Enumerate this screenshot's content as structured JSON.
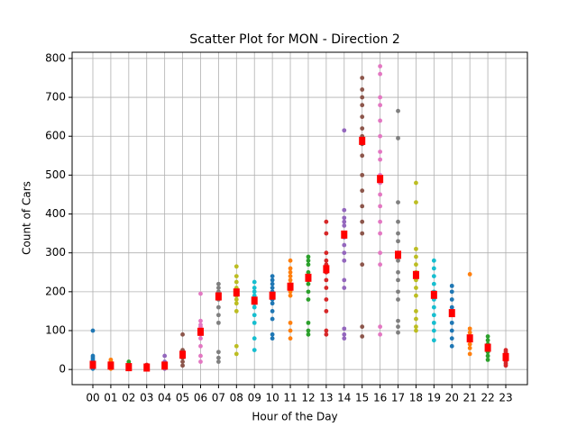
{
  "chart_data": {
    "type": "scatter",
    "title": "Scatter Plot for MON - Direction 2",
    "x_label": "Hour of the Day",
    "y_label": "Count of Cars",
    "categories": [
      "00",
      "01",
      "02",
      "03",
      "04",
      "05",
      "06",
      "07",
      "08",
      "09",
      "10",
      "11",
      "12",
      "13",
      "14",
      "15",
      "16",
      "17",
      "18",
      "19",
      "20",
      "21",
      "22",
      "23"
    ],
    "ylim": [
      -39,
      816
    ],
    "yticks": [
      0,
      100,
      200,
      300,
      400,
      500,
      600,
      700,
      800
    ],
    "grid": true,
    "series": [
      {
        "color": "#1f77b4",
        "values": [
          100,
          35,
          30,
          25,
          20,
          15,
          10,
          5,
          2
        ]
      },
      {
        "color": "#ff7f0e",
        "values": [
          25,
          20,
          15,
          10,
          8,
          5,
          2
        ]
      },
      {
        "color": "#2ca02c",
        "values": [
          20,
          15,
          10,
          5,
          3,
          1
        ]
      },
      {
        "color": "#d62728",
        "values": [
          12,
          8,
          5,
          3,
          1
        ]
      },
      {
        "color": "#9467bd",
        "values": [
          35,
          20,
          15,
          10,
          5,
          2
        ]
      },
      {
        "color": "#8c564b",
        "values": [
          90,
          50,
          45,
          40,
          35,
          30,
          20,
          10
        ]
      },
      {
        "color": "#e377c2",
        "values": [
          195,
          125,
          115,
          110,
          100,
          95,
          90,
          80,
          60,
          35,
          20
        ]
      },
      {
        "color": "#7f7f7f",
        "values": [
          220,
          210,
          200,
          190,
          180,
          160,
          140,
          120,
          45,
          30,
          20
        ]
      },
      {
        "color": "#bcbd22",
        "values": [
          265,
          240,
          225,
          210,
          200,
          190,
          180,
          170,
          150,
          60,
          40
        ]
      },
      {
        "color": "#17becf",
        "values": [
          225,
          210,
          200,
          190,
          180,
          170,
          160,
          140,
          120,
          80,
          50
        ]
      },
      {
        "color": "#1f77b4",
        "values": [
          240,
          230,
          220,
          210,
          200,
          190,
          180,
          170,
          150,
          130,
          90,
          80
        ]
      },
      {
        "color": "#ff7f0e",
        "values": [
          280,
          260,
          250,
          240,
          230,
          220,
          210,
          200,
          190,
          120,
          100,
          80
        ]
      },
      {
        "color": "#2ca02c",
        "values": [
          290,
          280,
          270,
          250,
          240,
          230,
          220,
          200,
          180,
          120,
          100,
          90
        ]
      },
      {
        "color": "#d62728",
        "values": [
          380,
          350,
          300,
          280,
          270,
          260,
          250,
          230,
          210,
          180,
          150,
          100,
          90
        ]
      },
      {
        "color": "#9467bd",
        "values": [
          615,
          410,
          390,
          380,
          370,
          350,
          340,
          320,
          300,
          280,
          230,
          210,
          105,
          90,
          80
        ]
      },
      {
        "color": "#8c564b",
        "values": [
          750,
          720,
          700,
          680,
          650,
          620,
          600,
          580,
          550,
          500,
          460,
          420,
          380,
          350,
          270,
          110,
          85
        ]
      },
      {
        "color": "#e377c2",
        "values": [
          780,
          760,
          700,
          680,
          640,
          600,
          560,
          540,
          500,
          480,
          450,
          420,
          380,
          350,
          300,
          270,
          110,
          90
        ]
      },
      {
        "color": "#7f7f7f",
        "values": [
          665,
          595,
          430,
          380,
          350,
          330,
          300,
          280,
          250,
          230,
          200,
          180,
          125,
          110,
          95
        ]
      },
      {
        "color": "#bcbd22",
        "values": [
          480,
          430,
          310,
          290,
          270,
          250,
          230,
          210,
          190,
          150,
          130,
          110,
          100
        ]
      },
      {
        "color": "#17becf",
        "values": [
          280,
          260,
          240,
          220,
          200,
          180,
          160,
          140,
          120,
          100,
          75
        ]
      },
      {
        "color": "#1f77b4",
        "values": [
          215,
          200,
          180,
          160,
          150,
          140,
          120,
          100,
          80,
          60
        ]
      },
      {
        "color": "#ff7f0e",
        "values": [
          245,
          105,
          95,
          85,
          75,
          65,
          55,
          40
        ]
      },
      {
        "color": "#2ca02c",
        "values": [
          85,
          75,
          65,
          55,
          50,
          45,
          35,
          25
        ]
      },
      {
        "color": "#d62728",
        "values": [
          50,
          45,
          40,
          35,
          30,
          25,
          20,
          15,
          10
        ]
      }
    ],
    "means": {
      "color": "#ff0000",
      "values": [
        12,
        10,
        6,
        5,
        10,
        38,
        97,
        188,
        198,
        177,
        190,
        213,
        236,
        258,
        347,
        588,
        490,
        295,
        243,
        192,
        145,
        80,
        56,
        32
      ]
    }
  }
}
